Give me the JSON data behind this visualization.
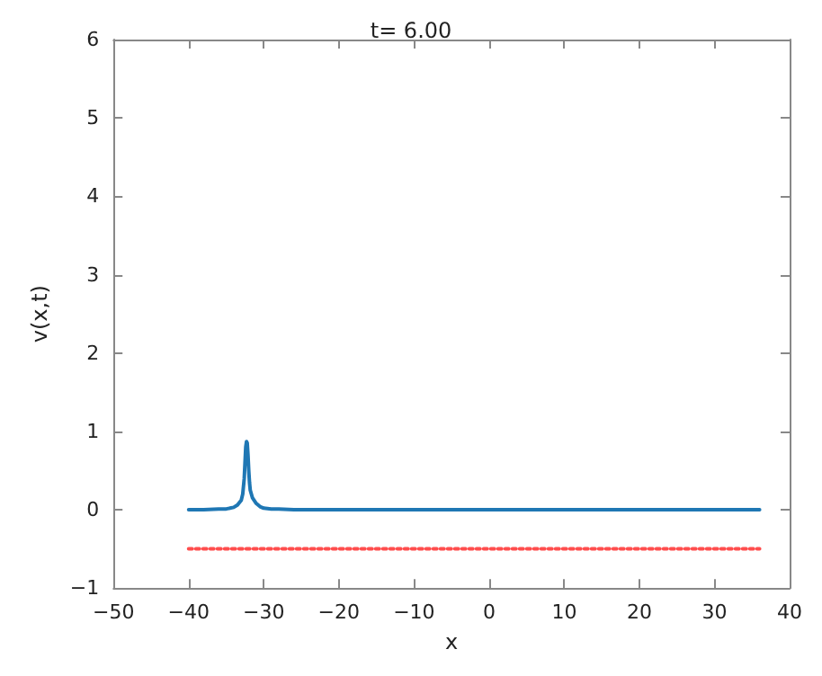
{
  "chart_data": {
    "type": "line",
    "title": "t= 6.00",
    "xlabel": "x",
    "ylabel": "v(x,t)",
    "xlim": [
      -50,
      40
    ],
    "xticks": [
      -50,
      -40,
      -30,
      -20,
      -10,
      0,
      10,
      20,
      30,
      40
    ],
    "ylim": [
      -1,
      6
    ],
    "yticks": [
      -1,
      0,
      1,
      2,
      3,
      4,
      5,
      6
    ],
    "grid": false,
    "marker": "none",
    "series": [
      {
        "color": "#1f77b4",
        "line_style": "solid",
        "x": [
          -40,
          -38,
          -36,
          -35,
          -34,
          -33.5,
          -33,
          -32.8,
          -32.6,
          -32.5,
          -32.4,
          -32.3,
          -32.2,
          -32.1,
          -32,
          -31.9,
          -31.8,
          -31.5,
          -31,
          -30.5,
          -30,
          -29,
          -28,
          -26,
          -20,
          -10,
          0,
          10,
          20,
          30,
          36
        ],
        "values": [
          0,
          0,
          0.01,
          0.01,
          0.03,
          0.06,
          0.12,
          0.2,
          0.4,
          0.6,
          0.8,
          0.87,
          0.85,
          0.7,
          0.5,
          0.35,
          0.25,
          0.15,
          0.08,
          0.04,
          0.02,
          0.01,
          0.01,
          0,
          0,
          0,
          0,
          0,
          0,
          0,
          0
        ]
      },
      {
        "color": "#ff4d4d",
        "line_style": "dotted",
        "x": [
          -40,
          -32,
          36
        ],
        "values": [
          -0.5,
          -0.5,
          -0.5
        ]
      }
    ]
  }
}
